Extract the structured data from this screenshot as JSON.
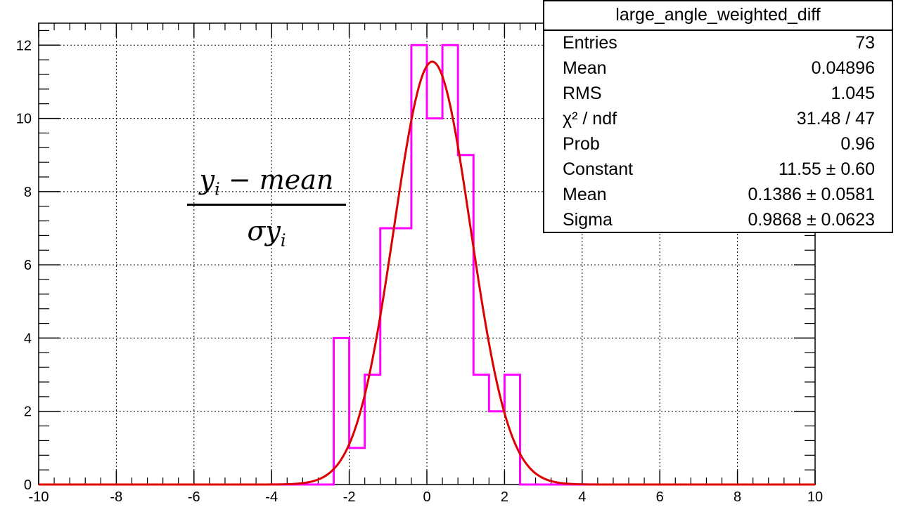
{
  "chart_data": {
    "type": "bar",
    "title": "",
    "xlabel": "",
    "ylabel": "",
    "xlim": [
      -10,
      10
    ],
    "ylim": [
      0,
      12.6
    ],
    "x_ticks": [
      "-10",
      "-8",
      "-6",
      "-4",
      "-2",
      "0",
      "2",
      "4",
      "6",
      "8",
      "10"
    ],
    "y_ticks": [
      "0",
      "2",
      "4",
      "6",
      "8",
      "10",
      "12"
    ],
    "grid": true,
    "histogram": {
      "name": "large_angle_weighted_diff",
      "bin_width": 0.4,
      "bins": [
        {
          "x_low": -2.4,
          "x_high": -2.0,
          "count": 4
        },
        {
          "x_low": -2.0,
          "x_high": -1.6,
          "count": 1
        },
        {
          "x_low": -1.6,
          "x_high": -1.2,
          "count": 3
        },
        {
          "x_low": -1.2,
          "x_high": -0.8,
          "count": 7
        },
        {
          "x_low": -0.8,
          "x_high": -0.4,
          "count": 7
        },
        {
          "x_low": -0.4,
          "x_high": 0.0,
          "count": 12
        },
        {
          "x_low": 0.0,
          "x_high": 0.4,
          "count": 10
        },
        {
          "x_low": 0.4,
          "x_high": 0.8,
          "count": 12
        },
        {
          "x_low": 0.8,
          "x_high": 1.2,
          "count": 9
        },
        {
          "x_low": 1.2,
          "x_high": 1.6,
          "count": 3
        },
        {
          "x_low": 1.6,
          "x_high": 2.0,
          "count": 2
        },
        {
          "x_low": 2.0,
          "x_high": 2.4,
          "count": 3
        }
      ],
      "color": "#ff00ff"
    },
    "fit": {
      "function": "gaus",
      "constant": 11.55,
      "mean": 0.1386,
      "sigma": 0.9868,
      "color": "#dd0000"
    },
    "annotation": {
      "numerator": "y",
      "numerator_sub": "i",
      "numerator_rest": " − mean",
      "denominator": "σy",
      "denominator_sub": "i"
    }
  },
  "stats": {
    "title": "large_angle_weighted_diff",
    "rows": [
      {
        "label": "Entries",
        "value": "73"
      },
      {
        "label": "Mean",
        "value": "0.04896"
      },
      {
        "label": "RMS",
        "value": "1.045"
      },
      {
        "label": "χ² / ndf",
        "value": "31.48 / 47"
      },
      {
        "label": "Prob",
        "value": "0.96"
      },
      {
        "label": "Constant",
        "value": "11.55 ± 0.60"
      },
      {
        "label": "Mean",
        "value": "0.1386 ± 0.0581"
      },
      {
        "label": "Sigma",
        "value": "0.9868 ± 0.0623"
      }
    ]
  }
}
